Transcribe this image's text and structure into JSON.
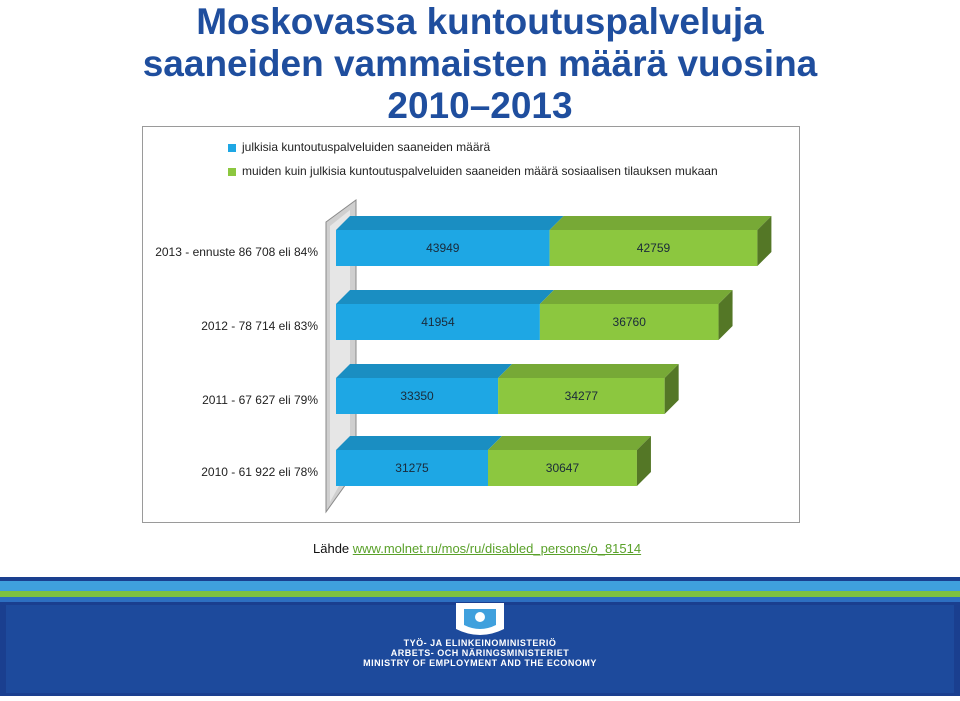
{
  "title": {
    "line1": "Moskovassa kuntoutuspalveluja",
    "line2": "saaneiden vammaisten määrä vuosina",
    "line3": "2010–2013"
  },
  "legend": [
    {
      "label": "julkisia kuntoutuspalveluiden saaneiden määrä",
      "color": "#1ea7e4"
    },
    {
      "label": "muiden kuin julkisia kuntoutuspalveluiden saaneiden määrä sosiaalisen tilauksen mukaan",
      "color": "#8cc73f"
    }
  ],
  "chart_data": {
    "type": "bar",
    "orientation": "horizontal",
    "stacked": true,
    "three_d": true,
    "categories": [
      "2013 - ennuste 86 708 eli 84%",
      "2012 - 78 714 eli 83%",
      "2011 - 67 627 eli 79%",
      "2010 - 61 922 eli 78%"
    ],
    "series": [
      {
        "name": "julkisia kuntoutuspalveluiden saaneiden määrä",
        "color": "#1ea7e4",
        "values": [
          43949,
          41954,
          33350,
          31275
        ]
      },
      {
        "name": "muiden kuin julkisia kuntoutuspalveluiden saaneiden määrä sosiaalisen tilauksen mukaan",
        "color": "#8cc73f",
        "values": [
          42759,
          36760,
          34277,
          30647
        ]
      }
    ],
    "data_labels": true,
    "legend_position": "top",
    "grid": false
  },
  "source": {
    "prefix": "Lähde ",
    "link": "www.molnet.ru/mos/ru/disabled_persons/o_81514"
  },
  "footer": {
    "ministry_fi": "TYÖ- JA ELINKEINOMINISTERIÖ",
    "ministry_sv": "ARBETS- OCH NÄRINGSMINISTERIET",
    "ministry_en": "MINISTRY OF EMPLOYMENT AND THE ECONOMY",
    "colors": [
      "#1a3f8f",
      "#2d6fc1",
      "#3fa0dd",
      "#7ec242"
    ]
  }
}
